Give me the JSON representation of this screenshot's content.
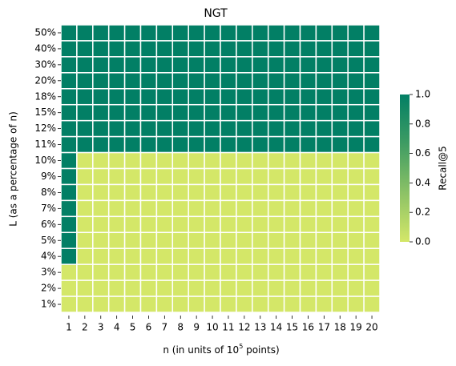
{
  "chart_data": {
    "type": "heatmap",
    "title": "NGT",
    "xlabel": {
      "text": "n (in units of 10",
      "superscript": "5",
      "suffix": " points)"
    },
    "ylabel": "L (as a percentage of n)",
    "x_categories": [
      1,
      2,
      3,
      4,
      5,
      6,
      7,
      8,
      9,
      10,
      11,
      12,
      13,
      14,
      15,
      16,
      17,
      18,
      19,
      20
    ],
    "y_categories": [
      "50%",
      "40%",
      "30%",
      "20%",
      "18%",
      "15%",
      "12%",
      "11%",
      "10%",
      "9%",
      "8%",
      "7%",
      "6%",
      "5%",
      "4%",
      "3%",
      "2%",
      "1%"
    ],
    "values": [
      [
        1,
        1,
        1,
        1,
        1,
        1,
        1,
        1,
        1,
        1,
        1,
        1,
        1,
        1,
        1,
        1,
        1,
        1,
        1,
        1
      ],
      [
        1,
        1,
        1,
        1,
        1,
        1,
        1,
        1,
        1,
        1,
        1,
        1,
        1,
        1,
        1,
        1,
        1,
        1,
        1,
        1
      ],
      [
        1,
        1,
        1,
        1,
        1,
        1,
        1,
        1,
        1,
        1,
        1,
        1,
        1,
        1,
        1,
        1,
        1,
        1,
        1,
        1
      ],
      [
        1,
        1,
        1,
        1,
        1,
        1,
        1,
        1,
        1,
        1,
        1,
        1,
        1,
        1,
        1,
        1,
        1,
        1,
        1,
        1
      ],
      [
        1,
        1,
        1,
        1,
        1,
        1,
        1,
        1,
        1,
        1,
        1,
        1,
        1,
        1,
        1,
        1,
        1,
        1,
        1,
        1
      ],
      [
        1,
        1,
        1,
        1,
        1,
        1,
        1,
        1,
        1,
        1,
        1,
        1,
        1,
        1,
        1,
        1,
        1,
        1,
        1,
        1
      ],
      [
        1,
        1,
        1,
        1,
        1,
        1,
        1,
        1,
        1,
        1,
        1,
        1,
        1,
        1,
        1,
        1,
        1,
        1,
        1,
        1
      ],
      [
        1,
        1,
        1,
        1,
        1,
        1,
        1,
        1,
        1,
        1,
        1,
        1,
        1,
        1,
        1,
        1,
        1,
        1,
        1,
        1
      ],
      [
        1,
        0,
        0,
        0,
        0,
        0,
        0,
        0,
        0,
        0,
        0,
        0,
        0,
        0,
        0,
        0,
        0,
        0,
        0,
        0
      ],
      [
        1,
        0,
        0,
        0,
        0,
        0,
        0,
        0,
        0,
        0,
        0,
        0,
        0,
        0,
        0,
        0,
        0,
        0,
        0,
        0
      ],
      [
        1,
        0,
        0,
        0,
        0,
        0,
        0,
        0,
        0,
        0,
        0,
        0,
        0,
        0,
        0,
        0,
        0,
        0,
        0,
        0
      ],
      [
        1,
        0,
        0,
        0,
        0,
        0,
        0,
        0,
        0,
        0,
        0,
        0,
        0,
        0,
        0,
        0,
        0,
        0,
        0,
        0
      ],
      [
        1,
        0,
        0,
        0,
        0,
        0,
        0,
        0,
        0,
        0,
        0,
        0,
        0,
        0,
        0,
        0,
        0,
        0,
        0,
        0
      ],
      [
        1,
        0,
        0,
        0,
        0,
        0,
        0,
        0,
        0,
        0,
        0,
        0,
        0,
        0,
        0,
        0,
        0,
        0,
        0,
        0
      ],
      [
        1,
        0,
        0,
        0,
        0,
        0,
        0,
        0,
        0,
        0,
        0,
        0,
        0,
        0,
        0,
        0,
        0,
        0,
        0,
        0
      ],
      [
        0,
        0,
        0,
        0,
        0,
        0,
        0,
        0,
        0,
        0,
        0,
        0,
        0,
        0,
        0,
        0,
        0,
        0,
        0,
        0
      ],
      [
        0,
        0,
        0,
        0,
        0,
        0,
        0,
        0,
        0,
        0,
        0,
        0,
        0,
        0,
        0,
        0,
        0,
        0,
        0,
        0
      ],
      [
        0,
        0,
        0,
        0,
        0,
        0,
        0,
        0,
        0,
        0,
        0,
        0,
        0,
        0,
        0,
        0,
        0,
        0,
        0,
        0
      ]
    ],
    "colorbar": {
      "label": "Recall@5",
      "clim": [
        0,
        1
      ],
      "ticks": [
        {
          "value": 0,
          "label": "0.0"
        },
        0.2,
        0.4,
        0.6,
        0.8,
        {
          "value": 1,
          "label": "1.0"
        }
      ],
      "colors": [
        "#d4e768",
        "#8cc266",
        "#3f9c63",
        "#027f65"
      ]
    }
  }
}
